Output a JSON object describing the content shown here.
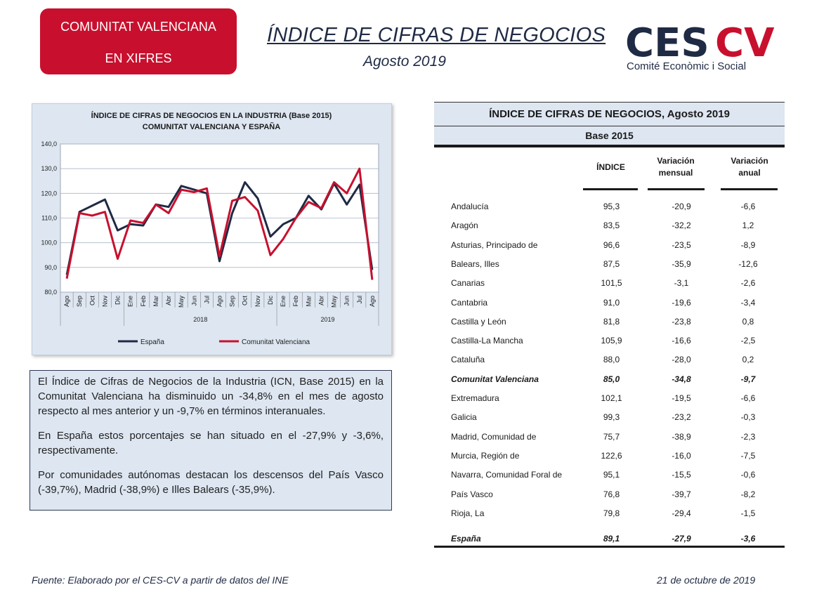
{
  "header": {
    "badge_line1": "COMUNITAT VALENCIANA",
    "badge_line2": "EN XIFRES",
    "title": "ÍNDICE DE CIFRAS DE NEGOCIOS",
    "subtitle": "Agosto 2019",
    "logo_text": "CESCV",
    "logo_tagline": "Comité Econòmic i Social",
    "brand_red": "#c8102e",
    "brand_navy": "#1f2a44"
  },
  "chart_data": {
    "type": "line",
    "title": "ÍNDICE DE CIFRAS DE NEGOCIOS EN LA INDUSTRIA (Base 2015)",
    "subtitle": "COMUNITAT VALENCIANA Y ESPAÑA",
    "categories": [
      "Ago",
      "Sep",
      "Oct",
      "Nov",
      "Dic",
      "Ene",
      "Feb",
      "Mar",
      "Abr",
      "May",
      "Jun",
      "Jul",
      "Ago",
      "Sep",
      "Oct",
      "Nov",
      "Dic",
      "Ene",
      "Feb",
      "Mar",
      "Abr",
      "May",
      "Jun",
      "Jul",
      "Ago"
    ],
    "year_groups": [
      {
        "label": "2018",
        "from": 5,
        "to": 16
      },
      {
        "label": "2019",
        "from": 17,
        "to": 24
      }
    ],
    "ylim": [
      80,
      140
    ],
    "yticks": [
      "80,0",
      "90,0",
      "100,0",
      "110,0",
      "120,0",
      "130,0",
      "140,0"
    ],
    "grid": true,
    "legend_position": "bottom",
    "series": [
      {
        "name": "España",
        "color": "#1f2a44",
        "values": [
          87,
          112.5,
          115,
          117.5,
          105,
          107.5,
          107,
          115.5,
          114.5,
          123,
          121.5,
          120,
          92.5,
          112,
          124.5,
          118,
          102.5,
          107.5,
          110,
          119,
          113.5,
          124,
          115.5,
          123.5,
          89
        ]
      },
      {
        "name": "Comunitat Valenciana",
        "color": "#c8102e",
        "values": [
          85.5,
          112,
          111,
          112.5,
          93.5,
          109,
          108,
          115.5,
          112,
          121.5,
          120.5,
          122,
          94.5,
          117,
          118.5,
          113,
          95,
          101.5,
          110,
          116.5,
          114,
          124.5,
          120,
          130,
          85
        ]
      }
    ]
  },
  "text": {
    "p1": "El Índice de Cifras de Negocios de la Industria (ICN, Base 2015) en la Comunitat Valenciana ha disminuido un -34,8% en el mes de agosto respecto al mes anterior y un -9,7% en términos interanuales.",
    "p2": "En España estos porcentajes se han situado en el -27,9% y -3,6%, respectivamente.",
    "p3": "Por comunidades autónomas destacan los descensos del País Vasco (-39,7%), Madrid (-38,9%) e Illes Balears (-35,9%)."
  },
  "table": {
    "title": "ÍNDICE DE CIFRAS DE NEGOCIOS, Agosto 2019",
    "base": "Base 2015",
    "col1": "ÍNDICE",
    "col2_l1": "Variación",
    "col2_l2": "mensual",
    "col3_l1": "Variación",
    "col3_l2": "anual",
    "rows": [
      {
        "name": "Andalucía",
        "indice": "95,3",
        "mensual": "-20,9",
        "anual": "-6,6"
      },
      {
        "name": "Aragón",
        "indice": "83,5",
        "mensual": "-32,2",
        "anual": "1,2"
      },
      {
        "name": "Asturias, Principado de",
        "indice": "96,6",
        "mensual": "-23,5",
        "anual": "-8,9"
      },
      {
        "name": "Balears, Illes",
        "indice": "87,5",
        "mensual": "-35,9",
        "anual": "-12,6"
      },
      {
        "name": "Canarias",
        "indice": "101,5",
        "mensual": "-3,1",
        "anual": "-2,6"
      },
      {
        "name": "Cantabria",
        "indice": "91,0",
        "mensual": "-19,6",
        "anual": "-3,4"
      },
      {
        "name": "Castilla y León",
        "indice": "81,8",
        "mensual": "-23,8",
        "anual": "0,8"
      },
      {
        "name": "Castilla-La Mancha",
        "indice": "105,9",
        "mensual": "-16,6",
        "anual": "-2,5"
      },
      {
        "name": "Cataluña",
        "indice": "88,0",
        "mensual": "-28,0",
        "anual": "0,2"
      },
      {
        "name": "Comunitat Valenciana",
        "indice": "85,0",
        "mensual": "-34,8",
        "anual": "-9,7",
        "highlight": true
      },
      {
        "name": "Extremadura",
        "indice": "102,1",
        "mensual": "-19,5",
        "anual": "-6,6"
      },
      {
        "name": "Galicia",
        "indice": "99,3",
        "mensual": "-23,2",
        "anual": "-0,3"
      },
      {
        "name": "Madrid, Comunidad de",
        "indice": "75,7",
        "mensual": "-38,9",
        "anual": "-2,3"
      },
      {
        "name": "Murcia, Región de",
        "indice": "122,6",
        "mensual": "-16,0",
        "anual": "-7,5"
      },
      {
        "name": "Navarra, Comunidad Foral de",
        "indice": "95,1",
        "mensual": "-15,5",
        "anual": "-0,6"
      },
      {
        "name": "País Vasco",
        "indice": "76,8",
        "mensual": "-39,7",
        "anual": "-8,2"
      },
      {
        "name": "Rioja, La",
        "indice": "79,8",
        "mensual": "-29,4",
        "anual": "-1,5"
      }
    ],
    "total": {
      "name": "España",
      "indice": "89,1",
      "mensual": "-27,9",
      "anual": "-3,6"
    }
  },
  "footer": {
    "source": "Fuente: Elaborado por el CES-CV a partir de datos del INE",
    "date": "21 de octubre de 2019"
  }
}
